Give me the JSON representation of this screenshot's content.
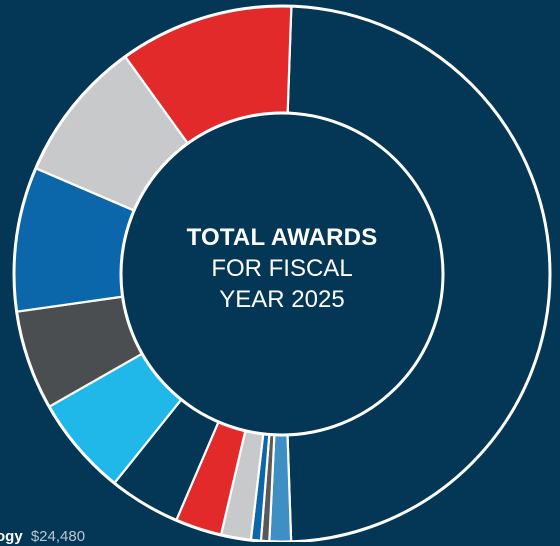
{
  "chart_data": {
    "type": "pie",
    "donut": true,
    "title_lines": [
      "TOTAL AWARDS",
      "FOR FISCAL",
      "YEAR 2025"
    ],
    "slices": [
      {
        "value": 48.9,
        "color": "#043656"
      },
      {
        "value": 1.3,
        "color": "#3e8fc4"
      },
      {
        "value": 0.5,
        "color": "#59595b"
      },
      {
        "value": 0.6,
        "color": "#0b67aa"
      },
      {
        "value": 1.8,
        "color": "#c8c9cb"
      },
      {
        "value": 2.8,
        "color": "#e22a2b"
      },
      {
        "value": 4.3,
        "color": "#043656"
      },
      {
        "value": 6.0,
        "color": "#1fb8e8"
      },
      {
        "value": 6.0,
        "color": "#4b4e51"
      },
      {
        "value": 8.7,
        "color": "#0b67aa"
      },
      {
        "value": 8.6,
        "color": "#c8c9cb"
      },
      {
        "value": 10.5,
        "color": "#e22a2b"
      }
    ],
    "partial_label": {
      "name": "ogy",
      "amount": "$24,480"
    }
  }
}
